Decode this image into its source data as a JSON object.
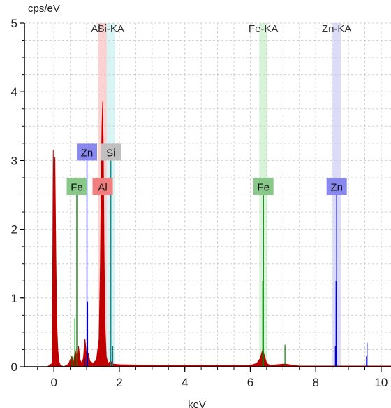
{
  "chart_data": {
    "type": "line",
    "title": "",
    "xlabel": "keV",
    "ylabel": "cps/eV",
    "xlim": [
      -0.9,
      10.3
    ],
    "ylim": [
      0,
      5
    ],
    "x_ticks": [
      0,
      2,
      4,
      6,
      8,
      10
    ],
    "y_ticks": [
      0,
      1,
      2,
      3,
      4,
      5
    ],
    "grid": true,
    "x_tick_labels": [
      "0",
      "2",
      "4",
      "6",
      "8",
      "10"
    ],
    "y_tick_labels": [
      "0",
      "1",
      "2",
      "3",
      "4",
      "5"
    ],
    "spectrum": {
      "color": "#c00000",
      "points": [
        [
          -0.2,
          0
        ],
        [
          -0.05,
          0.05
        ],
        [
          -0.02,
          3.15
        ],
        [
          0.0,
          2.2
        ],
        [
          0.03,
          3.05
        ],
        [
          0.06,
          1.6
        ],
        [
          0.09,
          0.6
        ],
        [
          0.12,
          0.25
        ],
        [
          0.15,
          0.08
        ],
        [
          0.2,
          0.02
        ],
        [
          0.3,
          0
        ],
        [
          0.45,
          0.04
        ],
        [
          0.5,
          0.1
        ],
        [
          0.55,
          0.15
        ],
        [
          0.6,
          0.05
        ],
        [
          0.65,
          0.25
        ],
        [
          0.7,
          0.12
        ],
        [
          0.75,
          0.3
        ],
        [
          0.8,
          0.1
        ],
        [
          0.85,
          0.05
        ],
        [
          0.9,
          0.12
        ],
        [
          0.95,
          0.4
        ],
        [
          1.0,
          0.15
        ],
        [
          1.05,
          0.2
        ],
        [
          1.1,
          0.08
        ],
        [
          1.2,
          0.05
        ],
        [
          1.3,
          0.1
        ],
        [
          1.38,
          0.4
        ],
        [
          1.42,
          1.5
        ],
        [
          1.45,
          2.9
        ],
        [
          1.47,
          3.5
        ],
        [
          1.49,
          3.85
        ],
        [
          1.51,
          3.1
        ],
        [
          1.53,
          1.8
        ],
        [
          1.56,
          0.6
        ],
        [
          1.6,
          0.15
        ],
        [
          1.65,
          0.05
        ],
        [
          1.74,
          0.08
        ],
        [
          1.8,
          0.04
        ],
        [
          2.0,
          0.03
        ],
        [
          2.5,
          0.025
        ],
        [
          3.0,
          0.02
        ],
        [
          4.0,
          0.02
        ],
        [
          5.0,
          0.02
        ],
        [
          6.0,
          0.02
        ],
        [
          6.2,
          0.05
        ],
        [
          6.3,
          0.12
        ],
        [
          6.38,
          0.25
        ],
        [
          6.42,
          0.18
        ],
        [
          6.5,
          0.05
        ],
        [
          6.6,
          0.02
        ],
        [
          7.05,
          0.04
        ],
        [
          7.5,
          0.01
        ],
        [
          8.0,
          0.01
        ],
        [
          8.62,
          0.01
        ],
        [
          9.0,
          0.01
        ],
        [
          10.3,
          0.01
        ]
      ]
    },
    "element_markers": [
      {
        "element": "Fe",
        "energy": 0.7,
        "height": 2.5,
        "color": "#008000",
        "tag_color": "#88c888"
      },
      {
        "element": "Zn",
        "energy": 1.01,
        "height": 3.0,
        "color": "#0000c0",
        "tag_color": "#8888ee"
      },
      {
        "element": "Al",
        "energy": 1.49,
        "height": 2.5,
        "color": "#c00000",
        "tag_color": "#f08080"
      },
      {
        "element": "Si",
        "energy": 1.74,
        "height": 3.0,
        "color": "#008080",
        "tag_color": "#c0c0c0"
      },
      {
        "element": "Fe",
        "energy": 6.4,
        "height": 2.5,
        "color": "#008000",
        "tag_color": "#88c888"
      },
      {
        "element": "Zn",
        "energy": 8.64,
        "height": 2.5,
        "color": "#0000c0",
        "tag_color": "#8888ee"
      }
    ],
    "line_bands": [
      {
        "label": "Al",
        "energy": 1.49,
        "color": "#ffd0d0"
      },
      {
        "label": "Si-KA",
        "energy": 1.74,
        "color": "#d8f4f4"
      },
      {
        "label": "Fe-KA",
        "energy": 6.4,
        "color": "#d8f4d8"
      },
      {
        "label": "Zn-KA",
        "energy": 8.64,
        "color": "#dcdcf8"
      }
    ],
    "minor_lines": [
      {
        "energy": 0.55,
        "height": 0.15,
        "color": "#008000"
      },
      {
        "energy": 0.64,
        "height": 0.7,
        "color": "#008000"
      },
      {
        "energy": 0.95,
        "height": 0.12,
        "color": "#0000c0"
      },
      {
        "energy": 1.03,
        "height": 0.95,
        "color": "#0000c0"
      },
      {
        "energy": 1.8,
        "height": 0.3,
        "color": "#008080"
      },
      {
        "energy": 6.38,
        "height": 1.25,
        "color": "#008000"
      },
      {
        "energy": 7.06,
        "height": 0.32,
        "color": "#008000"
      },
      {
        "energy": 8.62,
        "height": 1.25,
        "color": "#0000c0"
      },
      {
        "energy": 8.6,
        "height": 0.3,
        "color": "#0000c0"
      },
      {
        "energy": 9.57,
        "height": 0.35,
        "color": "#0000c0"
      },
      {
        "energy": 9.55,
        "height": 0.15,
        "color": "#0000c0"
      }
    ]
  }
}
